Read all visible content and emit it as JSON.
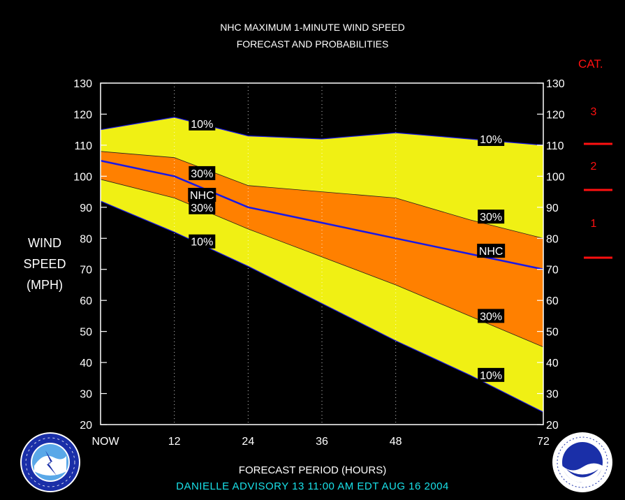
{
  "title": [
    "NHC MAXIMUM 1-MINUTE WIND SPEED",
    "FORECAST AND PROBABILITIES"
  ],
  "ylabel": [
    "WIND",
    "SPEED",
    "(MPH)"
  ],
  "xlabel": "FORECAST PERIOD (HOURS)",
  "advisory": "DANIELLE    ADVISORY  13 11:00  AM  EDT  AUG  16  2004",
  "colors": {
    "background": "#000000",
    "outer_band": "#f0f014",
    "inner_band": "#ff8000",
    "forecast_line": "#1818e8",
    "category_text": "#ff1010",
    "advisory_text": "#19e0e8"
  },
  "category_scale": {
    "title": "CAT.",
    "labels": [
      "3",
      "2",
      "1"
    ],
    "boundaries_mph": [
      111,
      96,
      74
    ]
  },
  "logos": [
    "nws-logo",
    "noaa-logo"
  ],
  "chart_data": {
    "type": "area",
    "x": [
      0,
      12,
      24,
      36,
      48,
      60,
      72
    ],
    "x_tick_labels": [
      "NOW",
      "12",
      "24",
      "36",
      "48",
      "",
      "72"
    ],
    "xlim": [
      0,
      72
    ],
    "ylim": [
      20,
      130
    ],
    "y_ticks": [
      20,
      30,
      40,
      50,
      60,
      70,
      80,
      90,
      100,
      110,
      120,
      130
    ],
    "grid_x": "dotted at 12, 24, 36, 48",
    "series": [
      {
        "name": "10%",
        "role": "upper",
        "values": [
          115,
          119,
          113,
          112,
          114,
          112,
          110
        ]
      },
      {
        "name": "30%",
        "role": "upper",
        "values": [
          108,
          106,
          97,
          95,
          93,
          86,
          80
        ]
      },
      {
        "name": "NHC",
        "role": "forecast",
        "values": [
          105,
          100,
          90,
          85,
          80,
          75,
          70
        ]
      },
      {
        "name": "30%",
        "role": "lower",
        "values": [
          99,
          93,
          83,
          74,
          65,
          55,
          45
        ]
      },
      {
        "name": "10%",
        "role": "lower",
        "values": [
          92,
          82,
          71,
          59,
          47,
          36,
          24
        ]
      }
    ],
    "annotations": [
      {
        "text": "10%",
        "x": 16.5,
        "y": 117
      },
      {
        "text": "30%",
        "x": 16.5,
        "y": 101
      },
      {
        "text": "NHC",
        "x": 16.5,
        "y": 94
      },
      {
        "text": "30%",
        "x": 16.5,
        "y": 90
      },
      {
        "text": "10%",
        "x": 16.5,
        "y": 79
      },
      {
        "text": "10%",
        "x": 63.5,
        "y": 112
      },
      {
        "text": "30%",
        "x": 63.5,
        "y": 87
      },
      {
        "text": "NHC",
        "x": 63.5,
        "y": 76
      },
      {
        "text": "30%",
        "x": 63.5,
        "y": 55
      },
      {
        "text": "10%",
        "x": 63.5,
        "y": 36
      }
    ]
  }
}
